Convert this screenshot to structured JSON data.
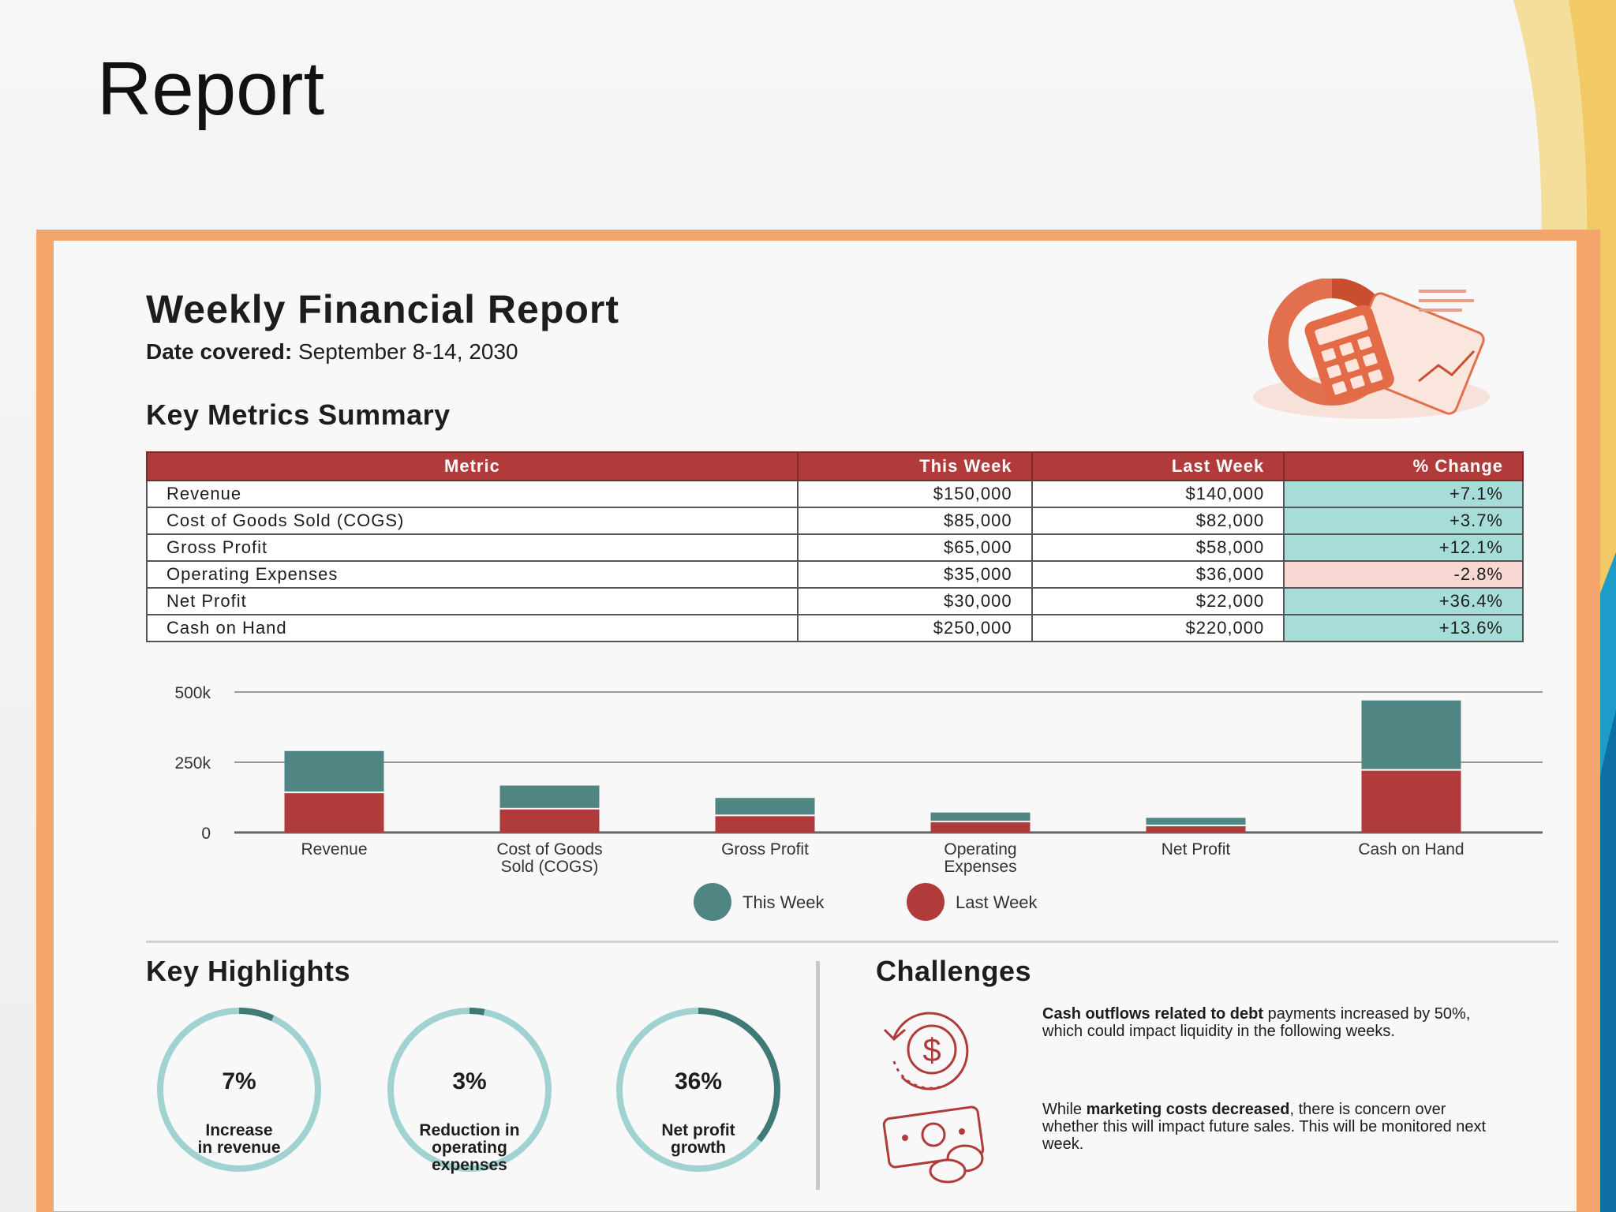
{
  "slide": {
    "title": "Report"
  },
  "report": {
    "title": "Weekly Financial Report",
    "date_label": "Date covered:",
    "date_value": "September 8-14, 2030"
  },
  "metrics": {
    "title": "Key Metrics Summary",
    "headers": [
      "Metric",
      "This Week",
      "Last Week",
      "% Change"
    ],
    "rows": [
      {
        "metric": "Revenue",
        "this_week": "$150,000",
        "last_week": "$140,000",
        "change": "+7.1%",
        "direction": "up"
      },
      {
        "metric": "Cost of Goods Sold (COGS)",
        "this_week": "$85,000",
        "last_week": "$82,000",
        "change": "+3.7%",
        "direction": "up"
      },
      {
        "metric": "Gross Profit",
        "this_week": "$65,000",
        "last_week": "$58,000",
        "change": "+12.1%",
        "direction": "up"
      },
      {
        "metric": "Operating Expenses",
        "this_week": "$35,000",
        "last_week": "$36,000",
        "change": "-2.8%",
        "direction": "down"
      },
      {
        "metric": "Net Profit",
        "this_week": "$30,000",
        "last_week": "$22,000",
        "change": "+36.4%",
        "direction": "up"
      },
      {
        "metric": "Cash on Hand",
        "this_week": "$250,000",
        "last_week": "$220,000",
        "change": "+13.6%",
        "direction": "up"
      }
    ]
  },
  "chart_data": {
    "type": "bar",
    "stacked": true,
    "categories": [
      "Revenue",
      "Cost of Goods Sold (COGS)",
      "Gross Profit",
      "Operating Expenses",
      "Net Profit",
      "Cash on Hand"
    ],
    "category_lines": [
      [
        "Revenue"
      ],
      [
        "Cost of Goods",
        "Sold (COGS)"
      ],
      [
        "Gross Profit"
      ],
      [
        "Operating",
        "Expenses"
      ],
      [
        "Net Profit"
      ],
      [
        "Cash on Hand"
      ]
    ],
    "series": [
      {
        "name": "This Week",
        "values": [
          150000,
          85000,
          65000,
          35000,
          30000,
          250000
        ],
        "color": "#4f8684"
      },
      {
        "name": "Last Week",
        "values": [
          140000,
          82000,
          58000,
          36000,
          22000,
          220000
        ],
        "color": "#b13b3b"
      }
    ],
    "y_ticks": [
      0,
      250000,
      500000
    ],
    "y_tick_labels": [
      "0",
      "250k",
      "500k"
    ],
    "ylim": [
      0,
      500000
    ],
    "grid": true,
    "legend": "bottom-center"
  },
  "highlights": {
    "title": "Key Highlights",
    "items": [
      {
        "value": "7%",
        "caption": [
          "Increase",
          "in revenue"
        ],
        "fraction": 0.07
      },
      {
        "value": "3%",
        "caption": [
          "Reduction in",
          "operating",
          "expenses"
        ],
        "fraction": 0.03
      },
      {
        "value": "36%",
        "caption": [
          "Net profit",
          "growth"
        ],
        "fraction": 0.36
      }
    ],
    "ring_color": "#9fd2d0",
    "ring_accent": "#3f7a77"
  },
  "challenges": {
    "title": "Challenges",
    "items": [
      {
        "icon": "dollar-refresh-icon",
        "bold": "Cash outflows related to debt",
        "rest": " payments increased by 50%, which could impact liquidity in the following weeks."
      },
      {
        "icon": "cash-coins-icon",
        "lead": "While ",
        "bold": "marketing costs decreased",
        "rest": ", there is concern over whether this will impact future sales. This will be monitored next week."
      }
    ]
  },
  "colors": {
    "accent": "#b13b3b",
    "teal": "#4f8684",
    "frame": "#f3a56b"
  }
}
